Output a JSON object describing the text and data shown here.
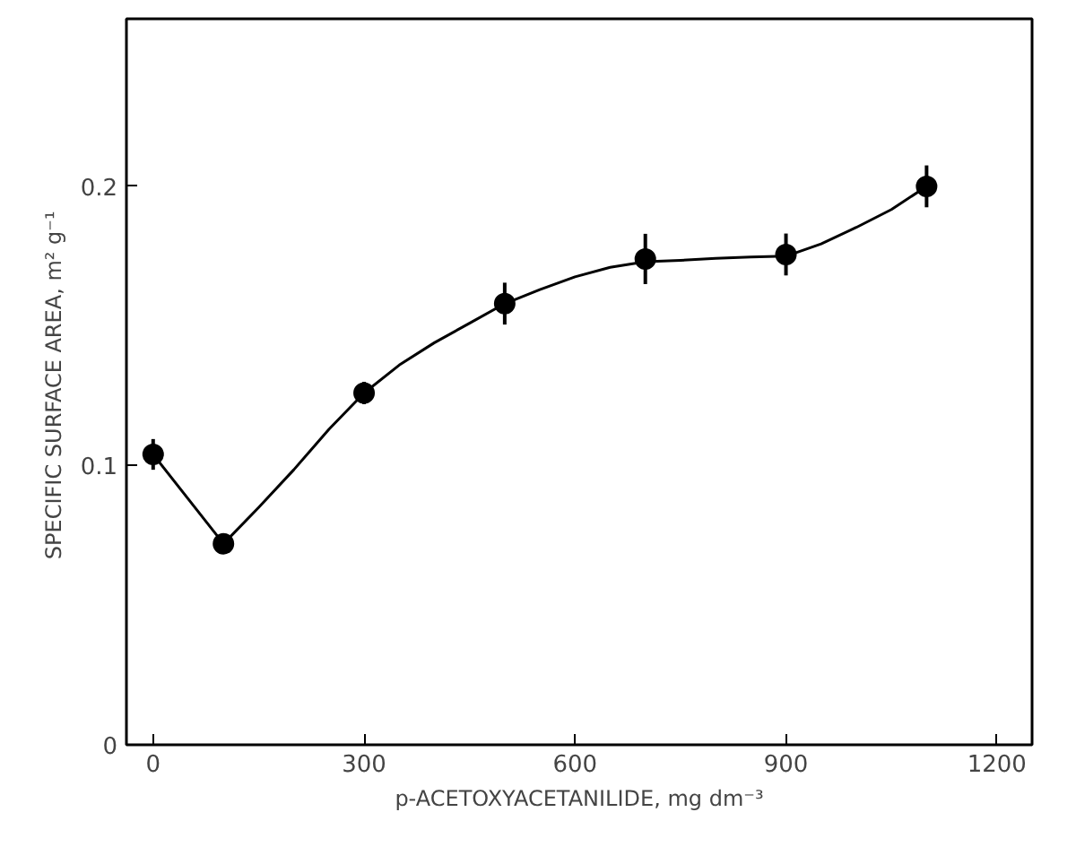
{
  "chart_data": {
    "type": "scatter",
    "xlabel": "p-ACETOXYACETANILIDE, mg dm⁻³",
    "ylabel": "SPECIFIC SURFACE AREA,  m² g⁻¹",
    "xlim": [
      -38,
      1250
    ],
    "ylim": [
      0,
      0.26
    ],
    "xticks": [
      0,
      300,
      600,
      900,
      1200
    ],
    "yticks": [
      0,
      0.1,
      0.2
    ],
    "grid": false,
    "series": [
      {
        "type": "line",
        "color": "#000000",
        "x": [
          0,
          100,
          150,
          200,
          250,
          300,
          350,
          400,
          450,
          500,
          550,
          600,
          650,
          700,
          750,
          800,
          850,
          900,
          950,
          1000,
          1050,
          1100
        ],
        "values": [
          0.104,
          0.072,
          0.085,
          0.0985,
          0.113,
          0.126,
          0.136,
          0.144,
          0.151,
          0.158,
          0.163,
          0.1676,
          0.171,
          0.173,
          0.1735,
          0.1742,
          0.1747,
          0.175,
          0.1794,
          0.1853,
          0.1917,
          0.2
        ]
      },
      {
        "color": "#000000",
        "marker": "circle",
        "x": [
          0,
          100,
          300,
          500,
          700,
          900,
          1100
        ],
        "values": [
          0.104,
          0.072,
          0.126,
          0.158,
          0.174,
          0.1756,
          0.2
        ],
        "errors": [
          0.0055,
          0.003,
          0.004,
          0.0075,
          0.009,
          0.0075,
          0.0075
        ]
      }
    ]
  }
}
